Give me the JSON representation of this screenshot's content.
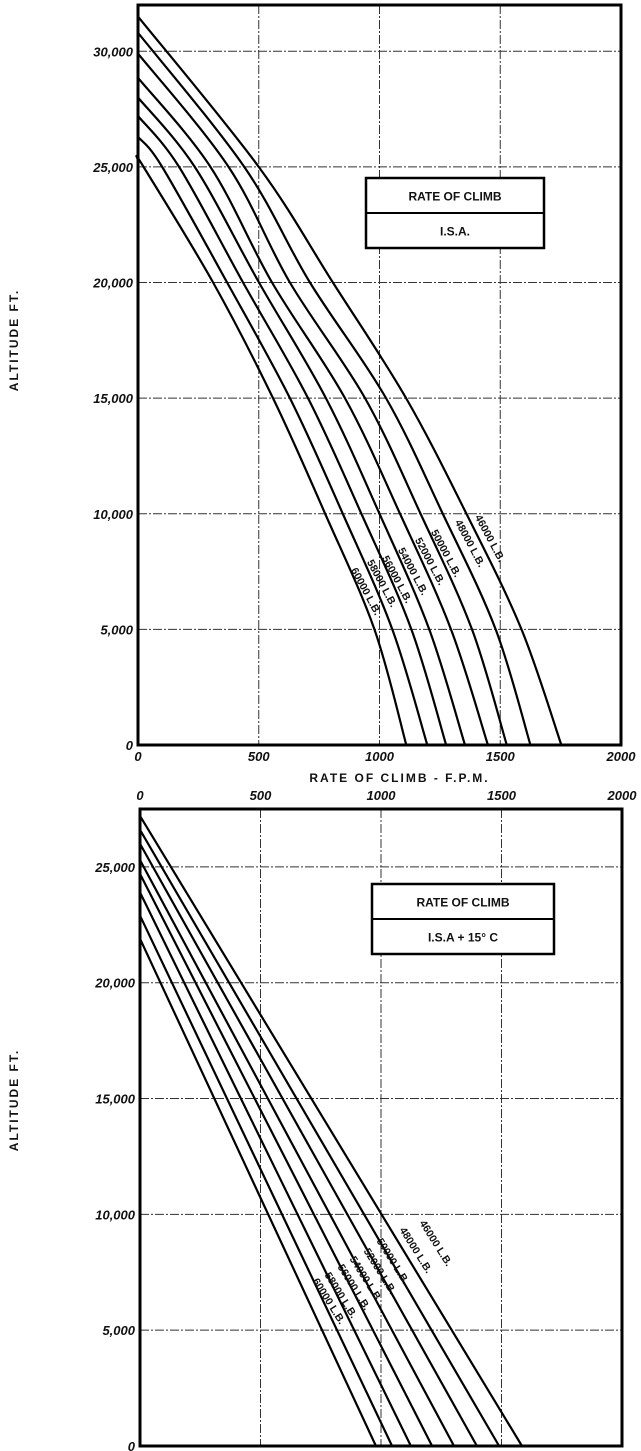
{
  "chart_data": [
    {
      "type": "line",
      "title": "RATE OF CLIMB",
      "subtitle": "I.S.A.",
      "xlabel": "RATE OF CLIMB  -  F.P.M.",
      "ylabel": "ALTITUDE  FT.",
      "xlim": [
        0,
        2000
      ],
      "ylim": [
        0,
        32000
      ],
      "x_ticks": [
        0,
        500,
        1000,
        1500,
        2000
      ],
      "x_tick_labels": [
        "0",
        "500",
        "1000",
        "1500",
        "2000"
      ],
      "x_axis_position": "bottom",
      "y_ticks": [
        0,
        5000,
        10000,
        15000,
        20000,
        25000,
        30000
      ],
      "y_tick_labels": [
        "0",
        "5,000",
        "10,000",
        "15,000",
        "20,000",
        "25,000",
        "30,000"
      ],
      "grid": true,
      "legend": "top-right box",
      "series": [
        {
          "name": "46000 L.B.",
          "points": [
            [
              0,
              31500
            ],
            [
              500,
              25000
            ],
            [
              807,
              20000
            ],
            [
              1110,
              15000
            ],
            [
              1360,
              10000
            ],
            [
              1588,
              5000
            ],
            [
              1753,
              0
            ]
          ]
        },
        {
          "name": "48000 L.B.",
          "points": [
            [
              0,
              30800
            ],
            [
              440,
              25000
            ],
            [
              712,
              20000
            ],
            [
              1027,
              15000
            ],
            [
              1262,
              10000
            ],
            [
              1481,
              5000
            ],
            [
              1625,
              0
            ]
          ]
        },
        {
          "name": "50000 L.B.",
          "points": [
            [
              0,
              29900
            ],
            [
              375,
              25000
            ],
            [
              629,
              20000
            ],
            [
              940,
              15000
            ],
            [
              1170,
              10000
            ],
            [
              1383,
              5000
            ],
            [
              1527,
              0
            ]
          ]
        },
        {
          "name": "52000 L.B.",
          "points": [
            [
              0,
              28850
            ],
            [
              300,
              25000
            ],
            [
              555,
              20000
            ],
            [
              857,
              15000
            ],
            [
              1085,
              10000
            ],
            [
              1296,
              5000
            ],
            [
              1449,
              0
            ]
          ]
        },
        {
          "name": "54000 L.B.",
          "points": [
            [
              0,
              28000
            ],
            [
              235,
              25000
            ],
            [
              501,
              20000
            ],
            [
              778,
              15000
            ],
            [
              1000,
              10000
            ],
            [
              1206,
              5000
            ],
            [
              1354,
              0
            ]
          ]
        },
        {
          "name": "56000 L.B.",
          "points": [
            [
              0,
              27200
            ],
            [
              170,
              25000
            ],
            [
              435,
              20000
            ],
            [
              704,
              15000
            ],
            [
              925,
              10000
            ],
            [
              1132,
              5000
            ],
            [
              1276,
              0
            ]
          ]
        },
        {
          "name": "58000 L.B.",
          "points": [
            [
              0,
              26300
            ],
            [
              100,
              25000
            ],
            [
              369,
              20000
            ],
            [
              629,
              15000
            ],
            [
              848,
              10000
            ],
            [
              1053,
              5000
            ],
            [
              1198,
              0
            ]
          ]
        },
        {
          "name": "60000 L.B.",
          "points": [
            [
              0,
              25300
            ],
            [
              23,
              25000
            ],
            [
              311,
              20000
            ],
            [
              559,
              15000
            ],
            [
              775,
              10000
            ],
            [
              979,
              5000
            ],
            [
              1111,
              0
            ]
          ]
        }
      ]
    },
    {
      "type": "line",
      "title": "RATE OF CLIMB",
      "subtitle": "I.S.A + 15° C",
      "xlabel": "",
      "ylabel": "ALTITUDE  FT.",
      "xlim": [
        0,
        2000
      ],
      "ylim": [
        0,
        27500
      ],
      "x_ticks": [
        0,
        500,
        1000,
        1500,
        2000
      ],
      "x_tick_labels": [
        "0",
        "500",
        "1000",
        "1500",
        "2000"
      ],
      "x_axis_position": "top",
      "y_ticks": [
        0,
        5000,
        10000,
        15000,
        20000,
        25000
      ],
      "y_tick_labels": [
        "0",
        "5,000",
        "10,000",
        "15,000",
        "20,000",
        "25,000"
      ],
      "grid": true,
      "legend": "top-right box",
      "series": [
        {
          "name": "46000 L.B.",
          "points": [
            [
              0,
              27200
            ],
            [
              1585,
              0
            ]
          ]
        },
        {
          "name": "48000 L.B.",
          "points": [
            [
              0,
              26600
            ],
            [
              1490,
              0
            ]
          ]
        },
        {
          "name": "50000 L.B.",
          "points": [
            [
              0,
              26000
            ],
            [
              1398,
              0
            ]
          ]
        },
        {
          "name": "52000 L.B.",
          "points": [
            [
              0,
              25300
            ],
            [
              1303,
              0
            ]
          ]
        },
        {
          "name": "54000 L.B.",
          "points": [
            [
              0,
              24700
            ],
            [
              1212,
              0
            ]
          ]
        },
        {
          "name": "56000 L.B.",
          "points": [
            [
              0,
              23900
            ],
            [
              1124,
              0
            ]
          ]
        },
        {
          "name": "58000 L.B.",
          "points": [
            [
              0,
              22900
            ],
            [
              1046,
              0
            ]
          ]
        },
        {
          "name": "60000 L.B.",
          "points": [
            [
              0,
              21900
            ],
            [
              979,
              0
            ]
          ]
        }
      ]
    }
  ]
}
